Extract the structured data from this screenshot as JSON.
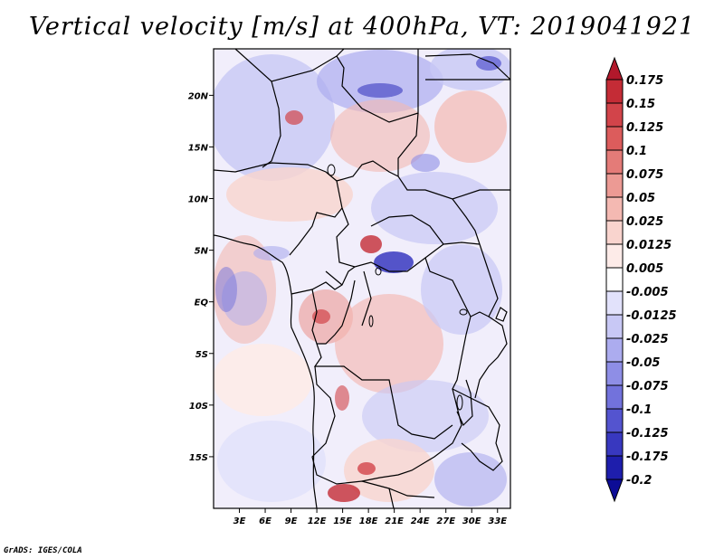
{
  "title": "Vertical velocity [m/s] at 400hPa, VT: 2019041921",
  "credit": "GrADS: IGES/COLA",
  "map": {
    "lon_range": [
      0,
      34.5
    ],
    "lat_range": [
      -20,
      24.5
    ],
    "x_ticks": [
      "3E",
      "6E",
      "9E",
      "12E",
      "15E",
      "18E",
      "21E",
      "24E",
      "27E",
      "30E",
      "33E"
    ],
    "x_tick_values": [
      3,
      6,
      9,
      12,
      15,
      18,
      21,
      24,
      27,
      30,
      33
    ],
    "y_ticks": [
      "20N",
      "15N",
      "10N",
      "5N",
      "EQ",
      "5S",
      "10S",
      "15S"
    ],
    "y_tick_values": [
      20,
      15,
      10,
      5,
      0,
      -5,
      -10,
      -15
    ]
  },
  "colorbar": {
    "labels": [
      "0.175",
      "0.15",
      "0.125",
      "0.1",
      "0.075",
      "0.05",
      "0.025",
      "0.0125",
      "0.005",
      "-0.005",
      "-0.0125",
      "-0.025",
      "-0.05",
      "-0.075",
      "-0.1",
      "-0.125",
      "-0.175",
      "-0.2"
    ],
    "colors": [
      "#b2182b",
      "#c42c36",
      "#d2444a",
      "#dc5c5c",
      "#e47b78",
      "#ec9a94",
      "#f4b9b2",
      "#f9d4ce",
      "#fdebe8",
      "#ffffff",
      "#e2e2fb",
      "#c8c8f5",
      "#acacef",
      "#8e8ee6",
      "#7272dc",
      "#5454cf",
      "#3838bf",
      "#1e1eac",
      "#0c0c96"
    ]
  }
}
